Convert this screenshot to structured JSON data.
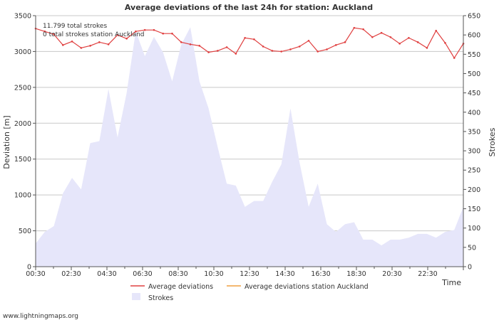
{
  "chart_data": {
    "type": "line",
    "title": "Average deviations of the last 24h for station: Auckland",
    "annotations": [
      "11.799 total strokes",
      "0 total strokes station Auckland"
    ],
    "xlabel": "Time",
    "ylabel_left": "Deviation [m]",
    "ylabel_right": "Strokes",
    "ylim_left": [
      0,
      3500
    ],
    "ylim_right": [
      0,
      650
    ],
    "x_ticks": [
      "00:30",
      "02:30",
      "04:30",
      "06:30",
      "08:30",
      "10:30",
      "12:30",
      "14:30",
      "16:30",
      "18:30",
      "20:30",
      "22:30"
    ],
    "y_left_ticks": [
      0,
      500,
      1000,
      1500,
      2000,
      2500,
      3000,
      3500
    ],
    "y_right_ticks": [
      0,
      50,
      100,
      150,
      200,
      250,
      300,
      350,
      400,
      450,
      500,
      550,
      600,
      650
    ],
    "series": [
      {
        "name": "Average deviations",
        "axis": "left",
        "color": "#e04040",
        "values": [
          3320,
          3280,
          3240,
          3090,
          3140,
          3050,
          3080,
          3130,
          3100,
          3230,
          3180,
          3280,
          3300,
          3300,
          3250,
          3250,
          3130,
          3100,
          3080,
          2990,
          3010,
          3060,
          2970,
          3190,
          3170,
          3070,
          3010,
          3000,
          3030,
          3070,
          3150,
          3000,
          3030,
          3090,
          3130,
          3330,
          3310,
          3200,
          3260,
          3200,
          3110,
          3190,
          3130,
          3050,
          3290,
          3120,
          2910,
          3110
        ]
      },
      {
        "name": "Average deviations station Auckland",
        "axis": "left",
        "color": "#f0a040",
        "values": []
      },
      {
        "name": "Strokes",
        "axis": "right",
        "color": "#e6e6fa",
        "values": [
          60,
          90,
          105,
          190,
          230,
          200,
          320,
          325,
          460,
          335,
          450,
          610,
          545,
          595,
          555,
          480,
          575,
          620,
          480,
          410,
          310,
          215,
          210,
          155,
          170,
          170,
          220,
          265,
          410,
          270,
          155,
          215,
          110,
          90,
          110,
          115,
          70,
          70,
          55,
          70,
          70,
          75,
          85,
          85,
          75,
          90,
          95,
          155
        ]
      }
    ]
  },
  "footer": {
    "credit": "www.lightningmaps.org"
  }
}
